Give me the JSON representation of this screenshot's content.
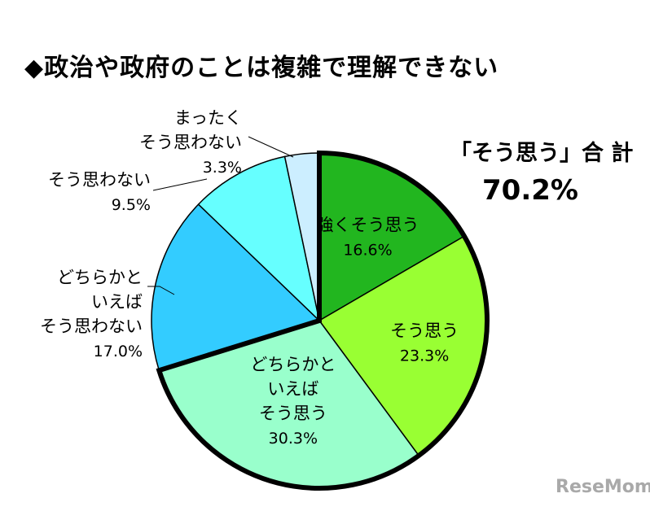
{
  "title": "◆政治や政府のことは複雑で理解できない",
  "callout": {
    "label": "「そう思う」合 計",
    "value": "70.2%"
  },
  "watermark": "ReseMom",
  "chart_data": {
    "type": "pie",
    "title": "◆政治や政府のことは複雑で理解できない",
    "start": "12 o'clock",
    "direction": "clockwise",
    "highlighted_total": {
      "label": "「そう思う」合 計",
      "value": 70.2,
      "unit": "%",
      "slices": [
        0,
        1,
        2
      ]
    },
    "slices": [
      {
        "label_lines": [
          "強くそう思う"
        ],
        "value": 16.6,
        "value_label": "16.6%",
        "color": "#22b61f",
        "label_position": "inside",
        "highlighted": true
      },
      {
        "label_lines": [
          "そう思う"
        ],
        "value": 23.3,
        "value_label": "23.3%",
        "color": "#99ff33",
        "label_position": "inside",
        "highlighted": true
      },
      {
        "label_lines": [
          "どちらかと",
          "いえば",
          "そう思う"
        ],
        "value": 30.3,
        "value_label": "30.3%",
        "color": "#99ffcc",
        "label_position": "inside",
        "highlighted": true
      },
      {
        "label_lines": [
          "どちらかと",
          "いえば",
          "そう思わない"
        ],
        "value": 17.0,
        "value_label": "17.0%",
        "color": "#33ccff",
        "label_position": "outside-left",
        "highlighted": false
      },
      {
        "label_lines": [
          "そう思わない"
        ],
        "value": 9.5,
        "value_label": "9.5%",
        "color": "#66ffff",
        "label_position": "outside-left",
        "highlighted": false
      },
      {
        "label_lines": [
          "まったく",
          "そう思わない"
        ],
        "value": 3.3,
        "value_label": "3.3%",
        "color": "#cceeff",
        "label_position": "outside-top",
        "highlighted": false
      }
    ]
  }
}
